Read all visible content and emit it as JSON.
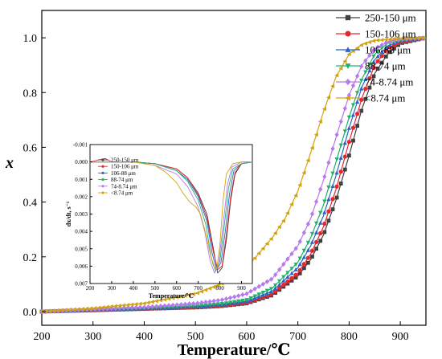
{
  "chart_data": [
    {
      "type": "line",
      "xlabel": "Temperature/℃",
      "ylabel": "x",
      "xlim": [
        200,
        950
      ],
      "ylim": [
        1.1,
        -0.05
      ],
      "y_inverted": true,
      "xticks": [
        "200",
        "300",
        "400",
        "500",
        "600",
        "700",
        "800",
        "900"
      ],
      "yticks": [
        "0.0",
        "0.2",
        "0.4",
        "0.6",
        "0.8",
        "1.0"
      ],
      "legend_position": "top-right",
      "series": [
        {
          "name": "250-150 μm",
          "color": "#404040",
          "marker": "square",
          "x": [
            200,
            300,
            400,
            500,
            550,
            600,
            650,
            700,
            725,
            750,
            775,
            800,
            825,
            850,
            875,
            900,
            950
          ],
          "y": [
            0.0,
            0.005,
            0.01,
            0.015,
            0.02,
            0.03,
            0.06,
            0.13,
            0.19,
            0.28,
            0.41,
            0.57,
            0.74,
            0.87,
            0.94,
            0.98,
            1.0
          ]
        },
        {
          "name": "150-106 μm",
          "color": "#e8262e",
          "marker": "circle",
          "x": [
            200,
            300,
            400,
            500,
            550,
            600,
            650,
            700,
            725,
            750,
            775,
            800,
            825,
            850,
            875,
            900,
            950
          ],
          "y": [
            0.0,
            0.005,
            0.01,
            0.017,
            0.022,
            0.033,
            0.065,
            0.14,
            0.21,
            0.31,
            0.45,
            0.62,
            0.78,
            0.9,
            0.96,
            0.985,
            1.0
          ]
        },
        {
          "name": "106-88 μm",
          "color": "#2a64c8",
          "marker": "triangle-up",
          "x": [
            200,
            300,
            400,
            500,
            550,
            600,
            650,
            700,
            725,
            750,
            775,
            800,
            825,
            850,
            875,
            900,
            950
          ],
          "y": [
            0.0,
            0.006,
            0.011,
            0.019,
            0.025,
            0.038,
            0.075,
            0.16,
            0.24,
            0.35,
            0.5,
            0.67,
            0.82,
            0.92,
            0.97,
            0.99,
            1.0
          ]
        },
        {
          "name": "88-74 μm",
          "color": "#21b06a",
          "marker": "triangle-down",
          "x": [
            200,
            300,
            400,
            500,
            550,
            600,
            650,
            700,
            725,
            750,
            775,
            800,
            825,
            850,
            875,
            900,
            950
          ],
          "y": [
            0.0,
            0.006,
            0.012,
            0.021,
            0.028,
            0.043,
            0.085,
            0.18,
            0.27,
            0.39,
            0.55,
            0.71,
            0.85,
            0.94,
            0.98,
            0.99,
            1.0
          ]
        },
        {
          "name": "74-8.74 μm",
          "color": "#b779ee",
          "marker": "diamond",
          "x": [
            200,
            300,
            400,
            500,
            550,
            600,
            650,
            700,
            725,
            750,
            775,
            800,
            825,
            850,
            875,
            900,
            950
          ],
          "y": [
            0.0,
            0.008,
            0.016,
            0.03,
            0.042,
            0.065,
            0.12,
            0.24,
            0.34,
            0.48,
            0.64,
            0.79,
            0.9,
            0.96,
            0.985,
            0.995,
            1.0
          ]
        },
        {
          "name": "<8.74 μm",
          "color": "#d4a20f",
          "marker": "triangle-left",
          "x": [
            200,
            300,
            400,
            500,
            550,
            600,
            650,
            675,
            700,
            725,
            750,
            775,
            800,
            825,
            850,
            900,
            950
          ],
          "y": [
            0.0,
            0.012,
            0.03,
            0.065,
            0.1,
            0.16,
            0.27,
            0.34,
            0.44,
            0.58,
            0.73,
            0.86,
            0.94,
            0.975,
            0.99,
            0.998,
            1.0
          ]
        }
      ]
    },
    {
      "type": "line",
      "xlabel": "Temperature/℃",
      "ylabel": "dx/dt, s⁻¹",
      "xlim": [
        200,
        950
      ],
      "ylim": [
        -0.001,
        0.007
      ],
      "xticks": [
        "200",
        "300",
        "400",
        "500",
        "600",
        "700",
        "800",
        "900"
      ],
      "yticks": [
        "-0.001",
        "0.000",
        "0.001",
        "0.002",
        "0.003",
        "0.004",
        "0.005",
        "0.006",
        "0.007"
      ],
      "legend_position": "top-left",
      "series": [
        {
          "name": "250-150 μm",
          "color": "#404040",
          "x": [
            200,
            300,
            400,
            500,
            600,
            650,
            700,
            740,
            770,
            790,
            810,
            830,
            850,
            870,
            900,
            950
          ],
          "y": [
            0.0,
            0.0,
            0.0,
            0.0001,
            0.0004,
            0.0009,
            0.0018,
            0.003,
            0.005,
            0.0064,
            0.0061,
            0.0045,
            0.0022,
            0.0007,
            0.0001,
            0.0
          ]
        },
        {
          "name": "150-106 μm",
          "color": "#e8262e",
          "x": [
            200,
            270,
            300,
            400,
            500,
            600,
            650,
            700,
            740,
            770,
            790,
            810,
            830,
            850,
            870,
            900,
            950
          ],
          "y": [
            0.0,
            -0.0002,
            0.0,
            0.0,
            0.0001,
            0.0004,
            0.0009,
            0.0019,
            0.0032,
            0.0052,
            0.0062,
            0.006,
            0.0042,
            0.002,
            0.0006,
            0.0001,
            0.0
          ]
        },
        {
          "name": "106-88 μm",
          "color": "#2a64c8",
          "x": [
            200,
            300,
            400,
            500,
            600,
            650,
            700,
            740,
            765,
            785,
            805,
            825,
            845,
            865,
            900,
            950
          ],
          "y": [
            0.0,
            0.0,
            0.0,
            0.0001,
            0.0005,
            0.001,
            0.002,
            0.0034,
            0.0053,
            0.0062,
            0.0058,
            0.004,
            0.0018,
            0.0005,
            0.0001,
            0.0
          ]
        },
        {
          "name": "88-74 μm",
          "color": "#21b06a",
          "x": [
            200,
            300,
            400,
            500,
            600,
            650,
            700,
            735,
            760,
            780,
            800,
            820,
            840,
            860,
            900,
            950
          ],
          "y": [
            0.0,
            0.0,
            0.0,
            0.0001,
            0.0005,
            0.0011,
            0.0022,
            0.0036,
            0.0055,
            0.0063,
            0.0057,
            0.0037,
            0.0015,
            0.0004,
            0.0001,
            0.0
          ]
        },
        {
          "name": "74-8.74 μm",
          "color": "#b779ee",
          "x": [
            200,
            300,
            400,
            500,
            600,
            650,
            700,
            730,
            755,
            775,
            795,
            815,
            835,
            855,
            900,
            950
          ],
          "y": [
            0.0,
            0.0,
            0.0,
            0.0002,
            0.0007,
            0.0014,
            0.0026,
            0.004,
            0.0057,
            0.0064,
            0.0058,
            0.0036,
            0.0013,
            0.0003,
            0.0,
            0.0
          ]
        },
        {
          "name": "<8.74 μm",
          "color": "#d4a20f",
          "x": [
            200,
            300,
            400,
            500,
            550,
            600,
            630,
            660,
            690,
            710,
            730,
            750,
            770,
            785,
            800,
            815,
            830,
            860,
            900,
            950
          ],
          "y": [
            0.0,
            0.0,
            0.0,
            0.0002,
            0.0006,
            0.0012,
            0.0018,
            0.0023,
            0.0026,
            0.003,
            0.0039,
            0.005,
            0.006,
            0.0062,
            0.0048,
            0.0022,
            0.0007,
            0.0001,
            0.0,
            0.0
          ]
        }
      ]
    }
  ]
}
